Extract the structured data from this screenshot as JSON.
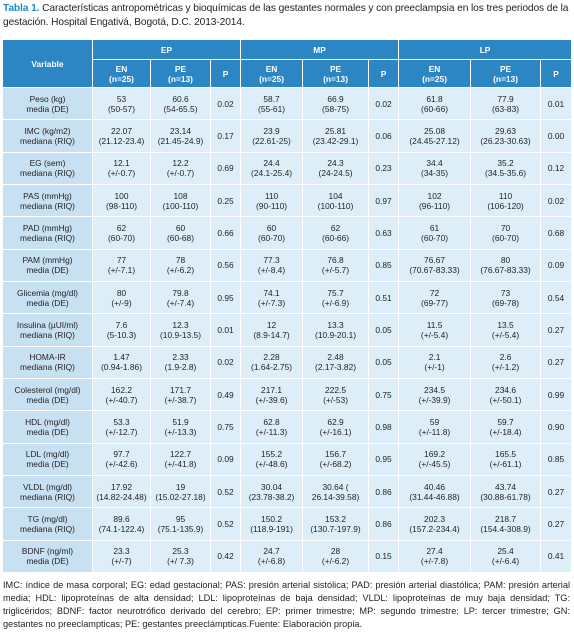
{
  "caption": {
    "label": "Tabla 1.",
    "text": " Características antropométricas y bioquímicas de las gestantes normales y con preeclampsia en los tres periodos de la gestación. Hospital Engativá, Bogotá, D.C. 2013-2014."
  },
  "header": {
    "variable": "Variable",
    "periods": [
      "EP",
      "MP",
      "LP"
    ],
    "sub": [
      {
        "name": "EN",
        "n": "(n=25)"
      },
      {
        "name": "PE",
        "n": "(n=13)"
      },
      {
        "name": "P",
        "n": ""
      }
    ]
  },
  "rows": [
    {
      "var": [
        "Peso (kg)",
        "media (DE)"
      ],
      "cells": [
        [
          "53",
          "(50-57)"
        ],
        [
          "60.6",
          "(54-65.5)"
        ],
        [
          "0.02",
          ""
        ],
        [
          "58.7",
          "(55-61)"
        ],
        [
          "66.9",
          "(58-75)"
        ],
        [
          "0.02",
          ""
        ],
        [
          "61.8",
          "(60-66)"
        ],
        [
          "77.9",
          "(63-83)"
        ],
        [
          "0.01",
          ""
        ]
      ]
    },
    {
      "var": [
        "IMC (kg/m2)",
        "mediana (RIQ)"
      ],
      "cells": [
        [
          "22.07",
          "(21.12-23.4)"
        ],
        [
          "23.14",
          "(21.45-24.9)"
        ],
        [
          "0.17",
          ""
        ],
        [
          "23.9",
          "(22.61-25)"
        ],
        [
          "25.81",
          "(23.42-29.1)"
        ],
        [
          "0.06",
          ""
        ],
        [
          "25.08",
          "(24.45-27.12)"
        ],
        [
          "29.63",
          "(26.23-30.63)"
        ],
        [
          "0.00",
          ""
        ]
      ]
    },
    {
      "var": [
        "EG (sem)",
        "mediana (RIQ)"
      ],
      "cells": [
        [
          "12.1",
          "(+/-0.7)"
        ],
        [
          "12.2",
          "(+/-0.7)"
        ],
        [
          "0.69",
          ""
        ],
        [
          "24.4",
          "(24.1-25.4)"
        ],
        [
          "24.3",
          "(24-24.5)"
        ],
        [
          "0.23",
          ""
        ],
        [
          "34.4",
          "(34-35)"
        ],
        [
          "35.2",
          "(34.5-35.6)"
        ],
        [
          "0.12",
          ""
        ]
      ]
    },
    {
      "var": [
        "PAS (mmHg)",
        "mediana (RIQ)"
      ],
      "cells": [
        [
          "100",
          "(98-110)"
        ],
        [
          "108",
          "(100-110)"
        ],
        [
          "0.25",
          ""
        ],
        [
          "110",
          "(90-110)"
        ],
        [
          "104",
          "(100-110)"
        ],
        [
          "0.97",
          ""
        ],
        [
          "102",
          "(96-110)"
        ],
        [
          "110",
          "(106-120)"
        ],
        [
          "0.02",
          ""
        ]
      ]
    },
    {
      "var": [
        "PAD (mmHg)",
        "mediana (RIQ)"
      ],
      "cells": [
        [
          "62",
          "(60-70)"
        ],
        [
          "60",
          "(60-68)"
        ],
        [
          "0.66",
          ""
        ],
        [
          "60",
          "(60-70)"
        ],
        [
          "62",
          "(60-66)"
        ],
        [
          "0.63",
          ""
        ],
        [
          "61",
          "(60-70)"
        ],
        [
          "70",
          "(60-70)"
        ],
        [
          "0.68",
          ""
        ]
      ]
    },
    {
      "var": [
        "PAM (mmHg)",
        "media (DE)"
      ],
      "cells": [
        [
          "77",
          "(+/-7.1)"
        ],
        [
          "78",
          "(+/-6.2)"
        ],
        [
          "0.56",
          ""
        ],
        [
          "77.3",
          "(+/-8.4)"
        ],
        [
          "76.8",
          "(+/-5.7)"
        ],
        [
          "0.85",
          ""
        ],
        [
          "76.67",
          "(70.67-83.33)"
        ],
        [
          "80",
          "(76.67-83.33)"
        ],
        [
          "0.09",
          ""
        ]
      ]
    },
    {
      "var": [
        "Glicemia (mg/dl)",
        "media (DE)"
      ],
      "cells": [
        [
          "80",
          "(+/-9)"
        ],
        [
          "79.8",
          "(+/-7.4)"
        ],
        [
          "0.95",
          ""
        ],
        [
          "74.1",
          "(+/-7.3)"
        ],
        [
          "75.7",
          "(+/-6.9)"
        ],
        [
          "0.51",
          ""
        ],
        [
          "72",
          "(69-77)"
        ],
        [
          "73",
          "(69-78)"
        ],
        [
          "0.54",
          ""
        ]
      ]
    },
    {
      "var": [
        "Insulina (µUI/ml)",
        "mediana (RIQ)"
      ],
      "cells": [
        [
          "7.6",
          "(5-10.3)"
        ],
        [
          "12.3",
          "(10.9-13.5)"
        ],
        [
          "0.01",
          ""
        ],
        [
          "12",
          "(8.9-14.7)"
        ],
        [
          "13.3",
          "(10.9-20.1)"
        ],
        [
          "0.05",
          ""
        ],
        [
          "11.5",
          "(+/-5.4)"
        ],
        [
          "13.5",
          "(+/-5.4)"
        ],
        [
          "0.27",
          ""
        ]
      ]
    },
    {
      "var": [
        "HOMA-IR",
        "mediana (RIQ)"
      ],
      "cells": [
        [
          "1.47",
          "(0.94-1.86)"
        ],
        [
          "2.33",
          "(1.9-2.8)"
        ],
        [
          "0.02",
          ""
        ],
        [
          "2.28",
          "(1.64-2.75)"
        ],
        [
          "2.48",
          "(2.17-3.82)"
        ],
        [
          "0.05",
          ""
        ],
        [
          "2.1",
          "(+/-1)"
        ],
        [
          "2.6",
          "(+/-1.2)"
        ],
        [
          "0.27",
          ""
        ]
      ]
    },
    {
      "var": [
        "Colesterol (mg/dl)",
        "media (DE)"
      ],
      "cells": [
        [
          "162.2",
          "(+/-40.7)"
        ],
        [
          "171.7",
          "(+/-38.7)"
        ],
        [
          "0.49",
          ""
        ],
        [
          "217.1",
          "(+/-39.6)"
        ],
        [
          "222.5",
          "(+/-53)"
        ],
        [
          "0.75",
          ""
        ],
        [
          "234.5",
          "(+/-39.9)"
        ],
        [
          "234.6",
          "(+/-50.1)"
        ],
        [
          "0.99",
          ""
        ]
      ]
    },
    {
      "var": [
        "HDL (mg/dl)",
        "media (DE)"
      ],
      "cells": [
        [
          "53.3",
          "(+/-12.7)"
        ],
        [
          "51.9",
          "(+/-13.3)"
        ],
        [
          "0.75",
          ""
        ],
        [
          "62.8",
          "(+/-11.3)"
        ],
        [
          "62.9",
          "(+/-16.1)"
        ],
        [
          "0.98",
          ""
        ],
        [
          "59",
          "(+/-11.8)"
        ],
        [
          "59.7",
          "(+/-18.4)"
        ],
        [
          "0.90",
          ""
        ]
      ]
    },
    {
      "var": [
        "LDL (mg/dl)",
        "media (DE)"
      ],
      "cells": [
        [
          "97.7",
          "(+/-42.6)"
        ],
        [
          "122.7",
          "(+/-41.8)"
        ],
        [
          "0.09",
          ""
        ],
        [
          "155.2",
          "(+/-48.6)"
        ],
        [
          "156.7",
          "(+/-68.2)"
        ],
        [
          "0.95",
          ""
        ],
        [
          "169.2",
          "(+/-45.5)"
        ],
        [
          "165.5",
          "(+/-61.1)"
        ],
        [
          "0.85",
          ""
        ]
      ]
    },
    {
      "var": [
        "VLDL (mg/dl)",
        "mediana (RIQ)"
      ],
      "cells": [
        [
          "17.92",
          "(14.82-24.48)"
        ],
        [
          "19",
          "(15.02-27.18)"
        ],
        [
          "0.52",
          ""
        ],
        [
          "30.04",
          "(23.78-38.2)"
        ],
        [
          "30.64 (",
          "26.14-39.58)"
        ],
        [
          "0.86",
          ""
        ],
        [
          "40.46",
          "(31.44-46.88)"
        ],
        [
          "43.74",
          "(30.88-61.78)"
        ],
        [
          "0.27",
          ""
        ]
      ]
    },
    {
      "var": [
        "TG (mg/dl)",
        "mediana (RIQ)"
      ],
      "cells": [
        [
          "89.6",
          "(74.1-122.4)"
        ],
        [
          "95",
          "(75.1-135.9)"
        ],
        [
          "0.52",
          ""
        ],
        [
          "150.2",
          "(118.9-191)"
        ],
        [
          "153.2",
          "(130.7-197.9)"
        ],
        [
          "0.86",
          ""
        ],
        [
          "202.3",
          "(157.2-234.4)"
        ],
        [
          "218.7",
          "(154.4-308.9)"
        ],
        [
          "0.27",
          ""
        ]
      ]
    },
    {
      "var": [
        "BDNF (ng/ml)",
        "media (DE)"
      ],
      "cells": [
        [
          "23.3",
          "(+/-7)"
        ],
        [
          "25.3",
          "(+/ 7.3)"
        ],
        [
          "0.42",
          ""
        ],
        [
          "24.7",
          "(+/-6.8)"
        ],
        [
          "28",
          "(+/-6.2)"
        ],
        [
          "0.15",
          ""
        ],
        [
          "27.4",
          "(+/-7.8)"
        ],
        [
          "25.4",
          "(+/-6.4)"
        ],
        [
          "0.41",
          ""
        ]
      ]
    }
  ],
  "footer": "IMC: índice de masa corporal; EG: edad gestacional; PAS: presión arterial sistólica; PAD: presión arterial diastólica; PAM: presión arterial media; HDL: lipoproteínas de alta densidad; LDL: lipoproteínas de baja densidad; VLDL: lipoproteínas de muy baja densidad; TG: triglicéridos; BDNF: factor neurotrófico derivado del cerebro; EP: primer trimestre; MP: segundo trimestre; LP: tercer trimestre; GN: gestantes no preeclampticas; PE: gestantes preeclámpticas.Fuente: Elaboración propia.",
  "colors": {
    "header": "#2d86c4",
    "cell": "#ddeef9",
    "var_cell": "#c8e1f2",
    "caption_label": "#1c8bc6"
  }
}
